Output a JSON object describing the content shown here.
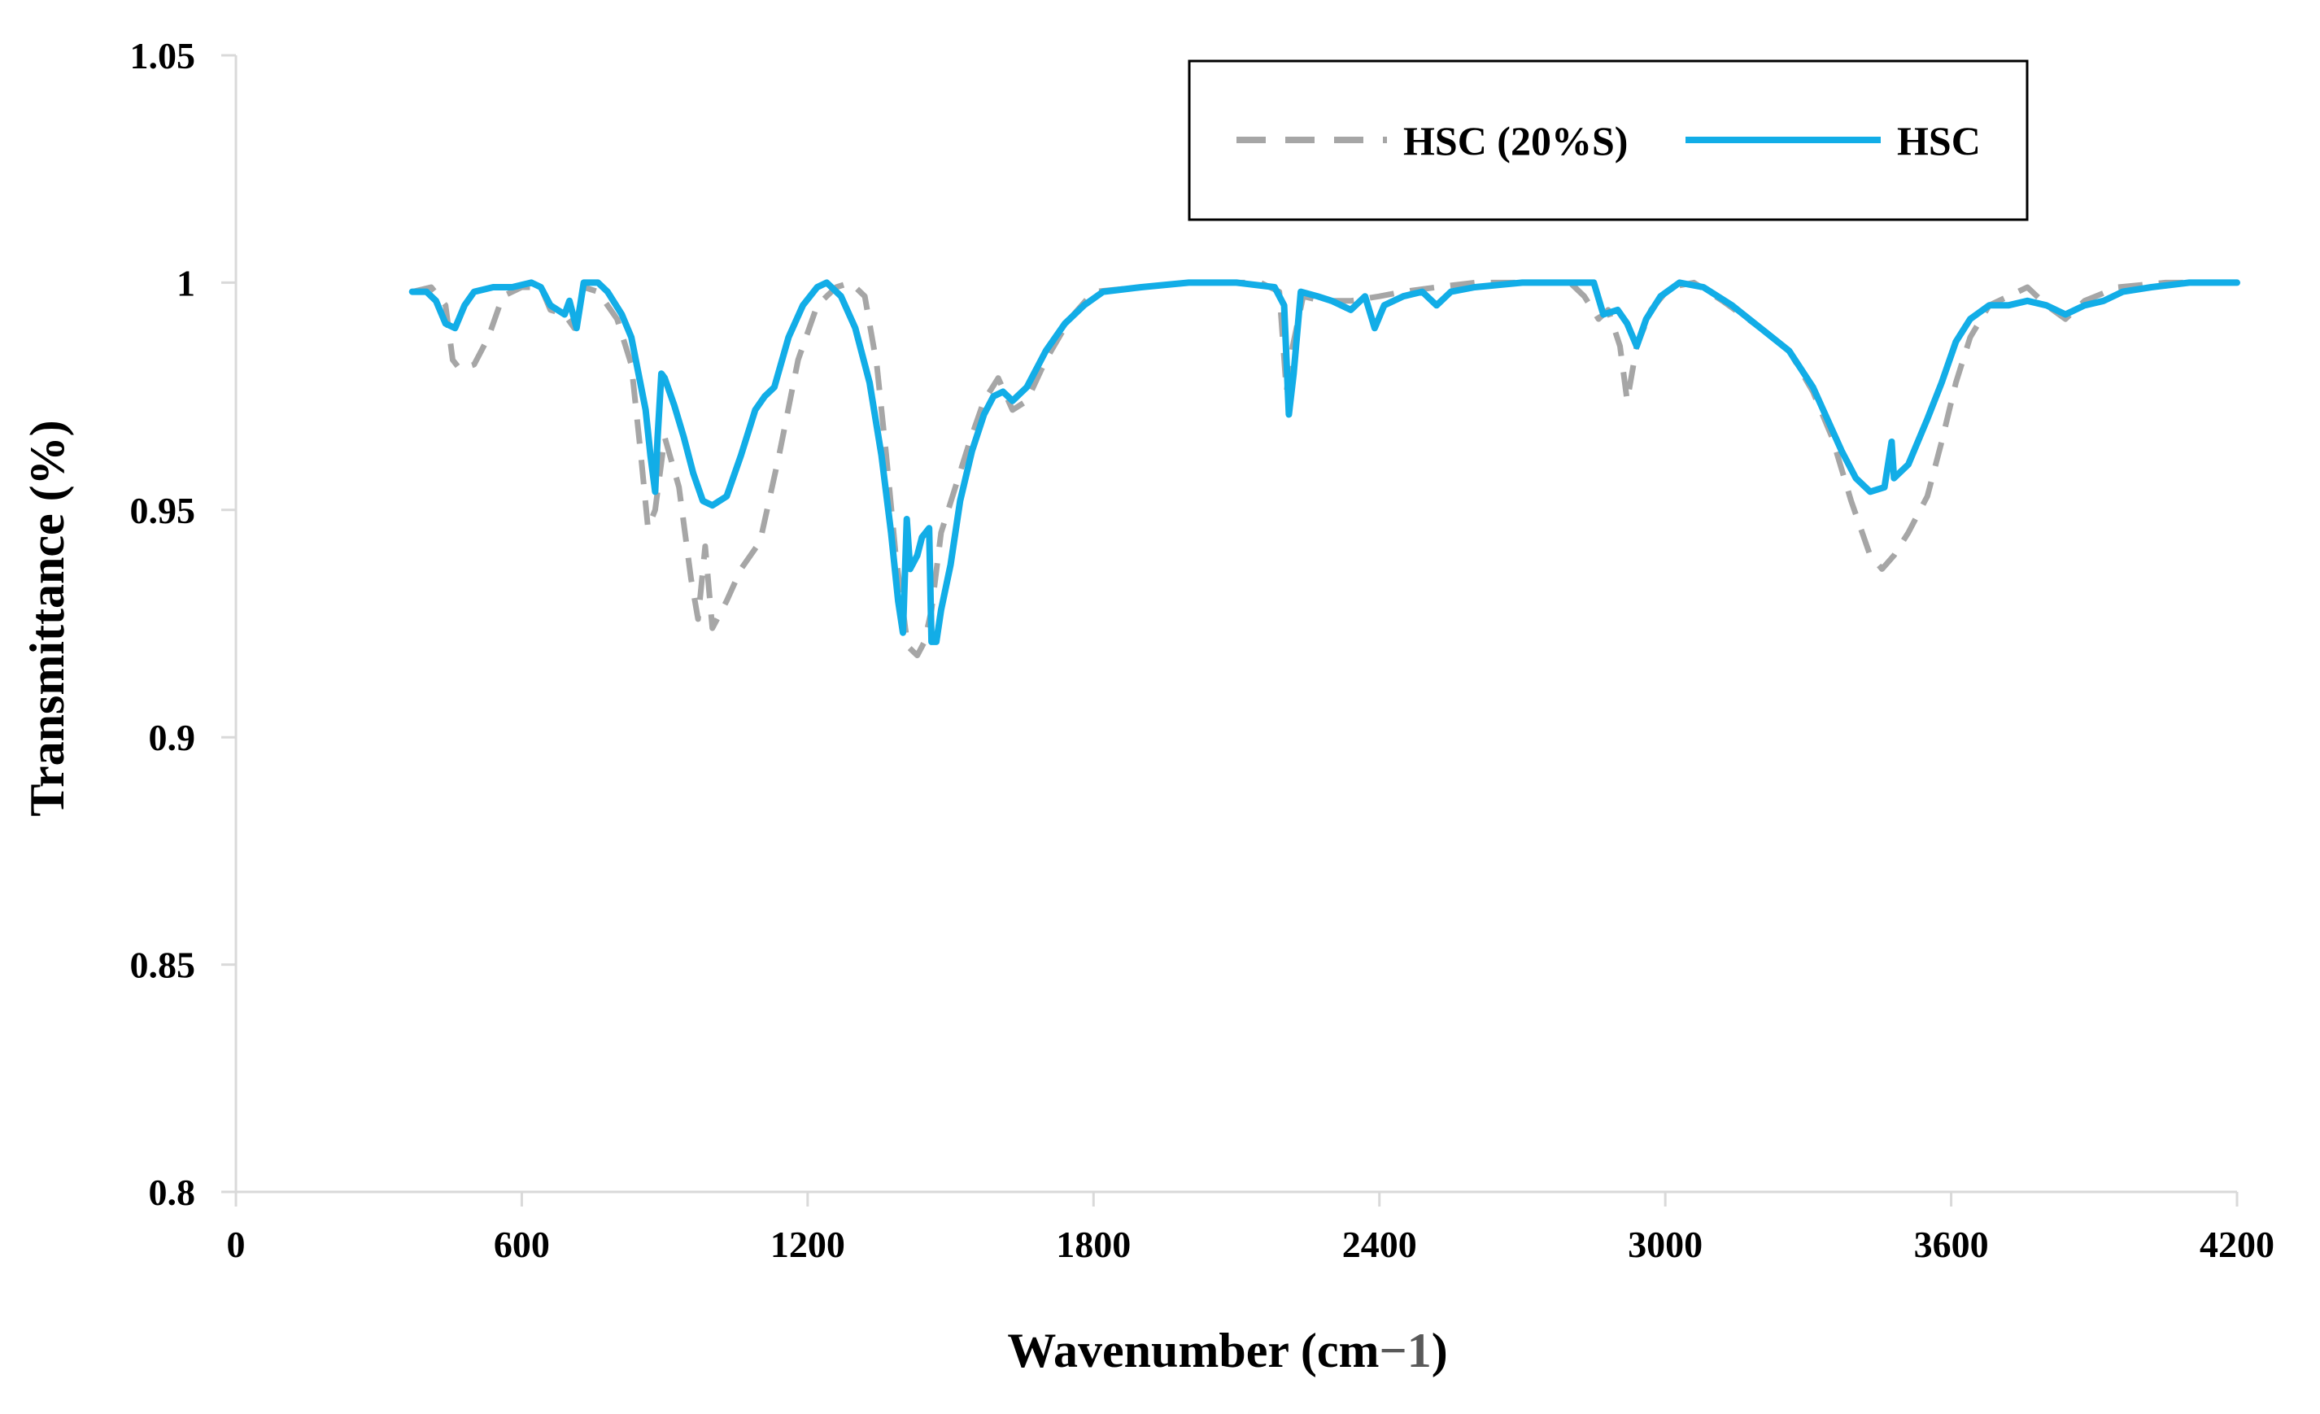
{
  "chart_data": {
    "type": "line",
    "xlabel": "Wavenumber (cm",
    "xlabel_sup": "−1",
    "xlabel_close": ")",
    "ylabel": "Transmittance (%)",
    "xlim": [
      0,
      4200
    ],
    "ylim": [
      0.8,
      1.05
    ],
    "x_ticks": [
      0,
      600,
      1200,
      1800,
      2400,
      3000,
      3600,
      4200
    ],
    "x_tick_labels": [
      "0",
      "600",
      "1200",
      "1800",
      "2400",
      "3000",
      "3600",
      "4200"
    ],
    "y_ticks": [
      0.8,
      0.85,
      0.9,
      0.95,
      1,
      1.05
    ],
    "y_tick_labels": [
      "0.8",
      "0.85",
      "0.9",
      "0.95",
      "1",
      "1.05"
    ],
    "grid": false,
    "legend_position": "top-right",
    "series": [
      {
        "name": "HSC (20%S)",
        "color": "#a6a6a6",
        "style": "dashed",
        "points": [
          [
            370,
            0.998
          ],
          [
            410,
            0.999
          ],
          [
            440,
            0.995
          ],
          [
            455,
            0.983
          ],
          [
            470,
            0.981
          ],
          [
            500,
            0.982
          ],
          [
            530,
            0.988
          ],
          [
            560,
            0.997
          ],
          [
            600,
            0.999
          ],
          [
            640,
            0.999
          ],
          [
            660,
            0.994
          ],
          [
            690,
            0.993
          ],
          [
            710,
            0.99
          ],
          [
            730,
            0.999
          ],
          [
            760,
            0.998
          ],
          [
            800,
            0.992
          ],
          [
            830,
            0.982
          ],
          [
            850,
            0.962
          ],
          [
            865,
            0.946
          ],
          [
            880,
            0.95
          ],
          [
            900,
            0.966
          ],
          [
            930,
            0.955
          ],
          [
            955,
            0.935
          ],
          [
            970,
            0.926
          ],
          [
            985,
            0.942
          ],
          [
            1000,
            0.924
          ],
          [
            1030,
            0.93
          ],
          [
            1060,
            0.937
          ],
          [
            1100,
            0.943
          ],
          [
            1140,
            0.962
          ],
          [
            1180,
            0.983
          ],
          [
            1220,
            0.995
          ],
          [
            1260,
            0.999
          ],
          [
            1290,
            1.0
          ],
          [
            1320,
            0.997
          ],
          [
            1345,
            0.982
          ],
          [
            1365,
            0.962
          ],
          [
            1385,
            0.94
          ],
          [
            1410,
            0.92
          ],
          [
            1430,
            0.918
          ],
          [
            1445,
            0.921
          ],
          [
            1460,
            0.928
          ],
          [
            1480,
            0.945
          ],
          [
            1510,
            0.955
          ],
          [
            1540,
            0.965
          ],
          [
            1570,
            0.974
          ],
          [
            1600,
            0.979
          ],
          [
            1630,
            0.972
          ],
          [
            1660,
            0.974
          ],
          [
            1700,
            0.983
          ],
          [
            1750,
            0.992
          ],
          [
            1800,
            0.998
          ],
          [
            1900,
            0.999
          ],
          [
            2000,
            1.0
          ],
          [
            2150,
            1.0
          ],
          [
            2190,
            0.998
          ],
          [
            2205,
            0.976
          ],
          [
            2218,
            0.986
          ],
          [
            2240,
            0.997
          ],
          [
            2280,
            0.996
          ],
          [
            2340,
            0.996
          ],
          [
            2400,
            0.997
          ],
          [
            2450,
            0.998
          ],
          [
            2520,
            0.999
          ],
          [
            2600,
            1.0
          ],
          [
            2800,
            1.0
          ],
          [
            2830,
            0.997
          ],
          [
            2860,
            0.992
          ],
          [
            2880,
            0.994
          ],
          [
            2905,
            0.986
          ],
          [
            2920,
            0.974
          ],
          [
            2940,
            0.986
          ],
          [
            2970,
            0.994
          ],
          [
            3010,
            0.999
          ],
          [
            3060,
            1.0
          ],
          [
            3120,
            0.996
          ],
          [
            3200,
            0.99
          ],
          [
            3260,
            0.985
          ],
          [
            3310,
            0.976
          ],
          [
            3350,
            0.966
          ],
          [
            3390,
            0.952
          ],
          [
            3430,
            0.94
          ],
          [
            3455,
            0.937
          ],
          [
            3480,
            0.94
          ],
          [
            3510,
            0.945
          ],
          [
            3550,
            0.953
          ],
          [
            3580,
            0.965
          ],
          [
            3610,
            0.978
          ],
          [
            3640,
            0.988
          ],
          [
            3680,
            0.995
          ],
          [
            3720,
            0.997
          ],
          [
            3760,
            0.999
          ],
          [
            3800,
            0.995
          ],
          [
            3840,
            0.992
          ],
          [
            3880,
            0.996
          ],
          [
            3950,
            0.999
          ],
          [
            4050,
            1.0
          ],
          [
            4200,
            1.0
          ]
        ]
      },
      {
        "name": "HSC",
        "color": "#12ade7",
        "style": "solid",
        "points": [
          [
            370,
            0.998
          ],
          [
            400,
            0.998
          ],
          [
            420,
            0.996
          ],
          [
            440,
            0.991
          ],
          [
            460,
            0.99
          ],
          [
            480,
            0.995
          ],
          [
            500,
            0.998
          ],
          [
            540,
            0.999
          ],
          [
            580,
            0.999
          ],
          [
            620,
            1.0
          ],
          [
            640,
            0.999
          ],
          [
            660,
            0.995
          ],
          [
            690,
            0.993
          ],
          [
            700,
            0.996
          ],
          [
            715,
            0.99
          ],
          [
            730,
            1.0
          ],
          [
            760,
            1.0
          ],
          [
            780,
            0.998
          ],
          [
            810,
            0.993
          ],
          [
            830,
            0.988
          ],
          [
            845,
            0.98
          ],
          [
            860,
            0.972
          ],
          [
            870,
            0.962
          ],
          [
            880,
            0.954
          ],
          [
            885,
            0.966
          ],
          [
            893,
            0.98
          ],
          [
            900,
            0.979
          ],
          [
            920,
            0.973
          ],
          [
            940,
            0.966
          ],
          [
            960,
            0.958
          ],
          [
            980,
            0.952
          ],
          [
            1000,
            0.951
          ],
          [
            1030,
            0.953
          ],
          [
            1060,
            0.962
          ],
          [
            1090,
            0.972
          ],
          [
            1110,
            0.975
          ],
          [
            1130,
            0.977
          ],
          [
            1160,
            0.988
          ],
          [
            1190,
            0.995
          ],
          [
            1220,
            0.999
          ],
          [
            1240,
            1.0
          ],
          [
            1270,
            0.997
          ],
          [
            1300,
            0.99
          ],
          [
            1330,
            0.978
          ],
          [
            1355,
            0.962
          ],
          [
            1375,
            0.945
          ],
          [
            1390,
            0.93
          ],
          [
            1400,
            0.923
          ],
          [
            1408,
            0.948
          ],
          [
            1415,
            0.937
          ],
          [
            1430,
            0.94
          ],
          [
            1440,
            0.944
          ],
          [
            1455,
            0.946
          ],
          [
            1460,
            0.921
          ],
          [
            1470,
            0.921
          ],
          [
            1480,
            0.928
          ],
          [
            1500,
            0.938
          ],
          [
            1520,
            0.952
          ],
          [
            1545,
            0.963
          ],
          [
            1570,
            0.971
          ],
          [
            1590,
            0.975
          ],
          [
            1610,
            0.976
          ],
          [
            1630,
            0.974
          ],
          [
            1660,
            0.977
          ],
          [
            1700,
            0.985
          ],
          [
            1740,
            0.991
          ],
          [
            1780,
            0.995
          ],
          [
            1820,
            0.998
          ],
          [
            1900,
            0.999
          ],
          [
            2000,
            1.0
          ],
          [
            2100,
            1.0
          ],
          [
            2180,
            0.999
          ],
          [
            2200,
            0.995
          ],
          [
            2210,
            0.971
          ],
          [
            2220,
            0.98
          ],
          [
            2235,
            0.998
          ],
          [
            2270,
            0.997
          ],
          [
            2300,
            0.996
          ],
          [
            2340,
            0.994
          ],
          [
            2370,
            0.997
          ],
          [
            2390,
            0.99
          ],
          [
            2410,
            0.995
          ],
          [
            2450,
            0.997
          ],
          [
            2490,
            0.998
          ],
          [
            2520,
            0.995
          ],
          [
            2550,
            0.998
          ],
          [
            2600,
            0.999
          ],
          [
            2700,
            1.0
          ],
          [
            2850,
            1.0
          ],
          [
            2870,
            0.993
          ],
          [
            2900,
            0.994
          ],
          [
            2920,
            0.991
          ],
          [
            2940,
            0.986
          ],
          [
            2960,
            0.992
          ],
          [
            2990,
            0.997
          ],
          [
            3030,
            1.0
          ],
          [
            3080,
            0.999
          ],
          [
            3140,
            0.995
          ],
          [
            3200,
            0.99
          ],
          [
            3260,
            0.985
          ],
          [
            3310,
            0.977
          ],
          [
            3340,
            0.97
          ],
          [
            3370,
            0.963
          ],
          [
            3400,
            0.957
          ],
          [
            3430,
            0.954
          ],
          [
            3460,
            0.955
          ],
          [
            3475,
            0.965
          ],
          [
            3480,
            0.957
          ],
          [
            3510,
            0.96
          ],
          [
            3550,
            0.97
          ],
          [
            3580,
            0.978
          ],
          [
            3610,
            0.987
          ],
          [
            3640,
            0.992
          ],
          [
            3680,
            0.995
          ],
          [
            3720,
            0.995
          ],
          [
            3760,
            0.996
          ],
          [
            3800,
            0.995
          ],
          [
            3840,
            0.993
          ],
          [
            3880,
            0.995
          ],
          [
            3920,
            0.996
          ],
          [
            3960,
            0.998
          ],
          [
            4020,
            0.999
          ],
          [
            4100,
            1.0
          ],
          [
            4200,
            1.0
          ]
        ]
      }
    ]
  }
}
